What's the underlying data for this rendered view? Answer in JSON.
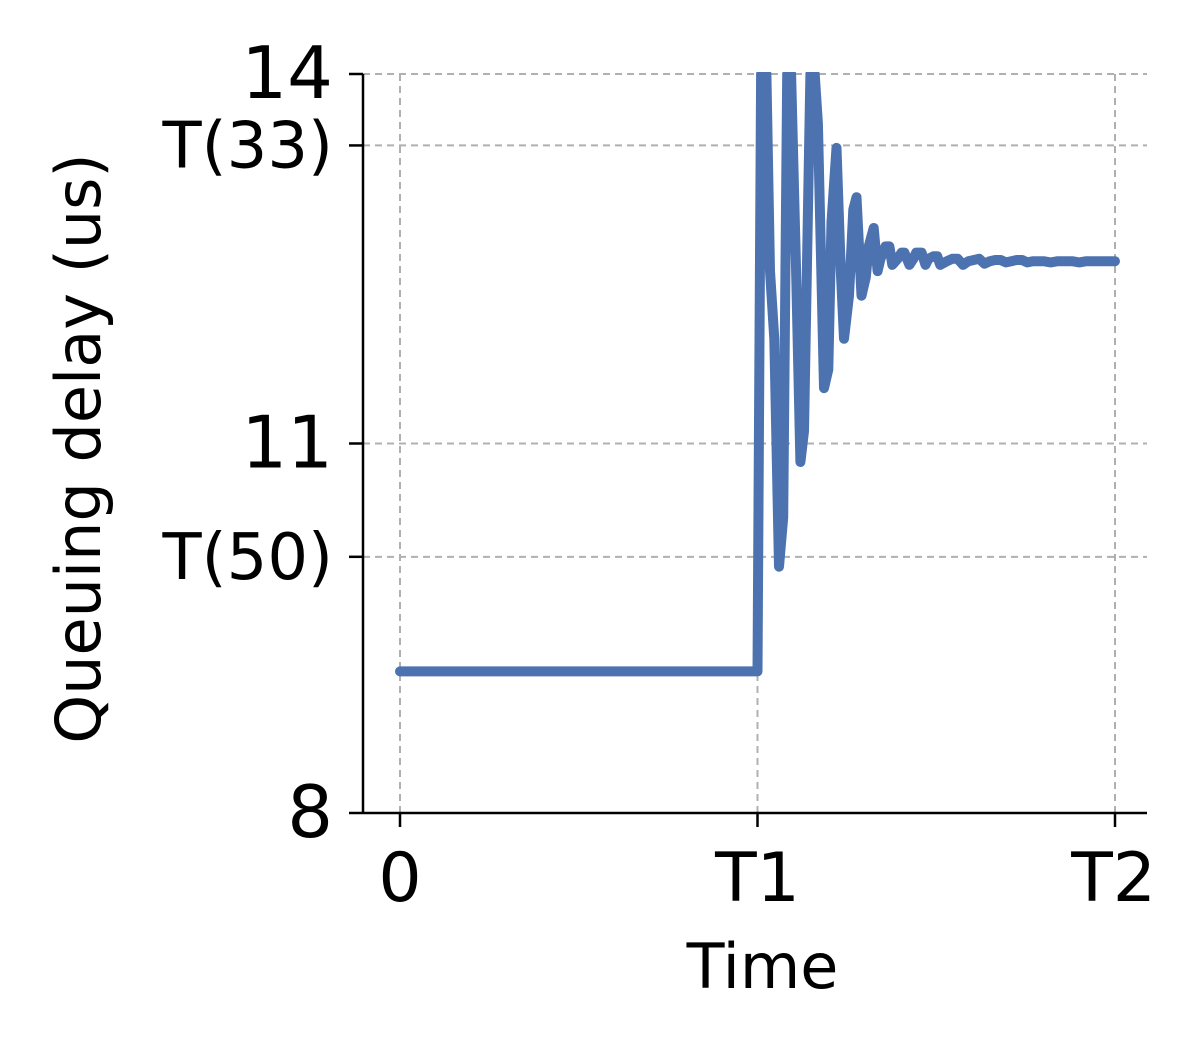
{
  "chart_data": {
    "type": "line",
    "xlabel": "Time",
    "ylabel": "Queuing delay (us)",
    "xlim": [
      0,
      2.1
    ],
    "ylim": [
      8,
      14
    ],
    "x_ticks": [
      {
        "value": 0,
        "label": "0"
      },
      {
        "value": 1,
        "label": "T1"
      },
      {
        "value": 2,
        "label": "T2"
      }
    ],
    "y_ticks": [
      {
        "value": 8,
        "label": "8"
      },
      {
        "value": 10.08,
        "label": "T(50)"
      },
      {
        "value": 11,
        "label": "11"
      },
      {
        "value": 13.42,
        "label": "T(33)"
      },
      {
        "value": 14,
        "label": "14"
      }
    ],
    "grid": true,
    "series_color": "#4c72b0",
    "grid_color": "#b0b0b0",
    "series": [
      {
        "x": [
          0,
          0.14,
          0.28,
          0.42,
          0.56,
          0.7,
          0.84,
          0.98,
          1.0,
          1.01,
          1.025,
          1.035,
          1.047,
          1.06,
          1.072,
          1.083,
          1.094,
          1.108,
          1.12,
          1.13,
          1.148,
          1.16,
          1.169,
          1.186,
          1.198,
          1.207,
          1.221,
          1.233,
          1.242,
          1.256,
          1.268,
          1.277,
          1.291,
          1.303,
          1.311,
          1.325,
          1.336,
          1.344,
          1.358,
          1.369,
          1.377,
          1.392,
          1.403,
          1.411,
          1.425,
          1.436,
          1.444,
          1.459,
          1.47,
          1.478,
          1.492,
          1.503,
          1.511,
          1.53,
          1.545,
          1.56,
          1.575,
          1.59,
          1.605,
          1.62,
          1.635,
          1.65,
          1.665,
          1.68,
          1.695,
          1.71,
          1.725,
          1.74,
          1.755,
          1.77,
          1.785,
          1.8,
          1.82,
          1.84,
          1.86,
          1.88,
          1.9,
          1.92,
          1.94,
          1.96,
          1.98,
          2.0
        ],
        "y": [
          9.15,
          9.15,
          9.15,
          9.15,
          9.15,
          9.15,
          9.15,
          9.15,
          9.15,
          14.0,
          14.0,
          12.4,
          11.85,
          10.0,
          10.4,
          14.0,
          14.0,
          12.4,
          10.85,
          11.1,
          14.0,
          14.0,
          13.6,
          11.45,
          11.6,
          12.8,
          13.4,
          12.4,
          11.85,
          12.2,
          12.9,
          13.0,
          12.2,
          12.35,
          12.6,
          12.75,
          12.4,
          12.5,
          12.6,
          12.6,
          12.45,
          12.5,
          12.55,
          12.55,
          12.45,
          12.5,
          12.55,
          12.55,
          12.45,
          12.5,
          12.52,
          12.52,
          12.45,
          12.48,
          12.5,
          12.5,
          12.45,
          12.48,
          12.49,
          12.5,
          12.46,
          12.48,
          12.49,
          12.49,
          12.47,
          12.48,
          12.49,
          12.49,
          12.47,
          12.48,
          12.48,
          12.48,
          12.47,
          12.48,
          12.48,
          12.48,
          12.47,
          12.48,
          12.48,
          12.48,
          12.48,
          12.48
        ]
      }
    ]
  }
}
